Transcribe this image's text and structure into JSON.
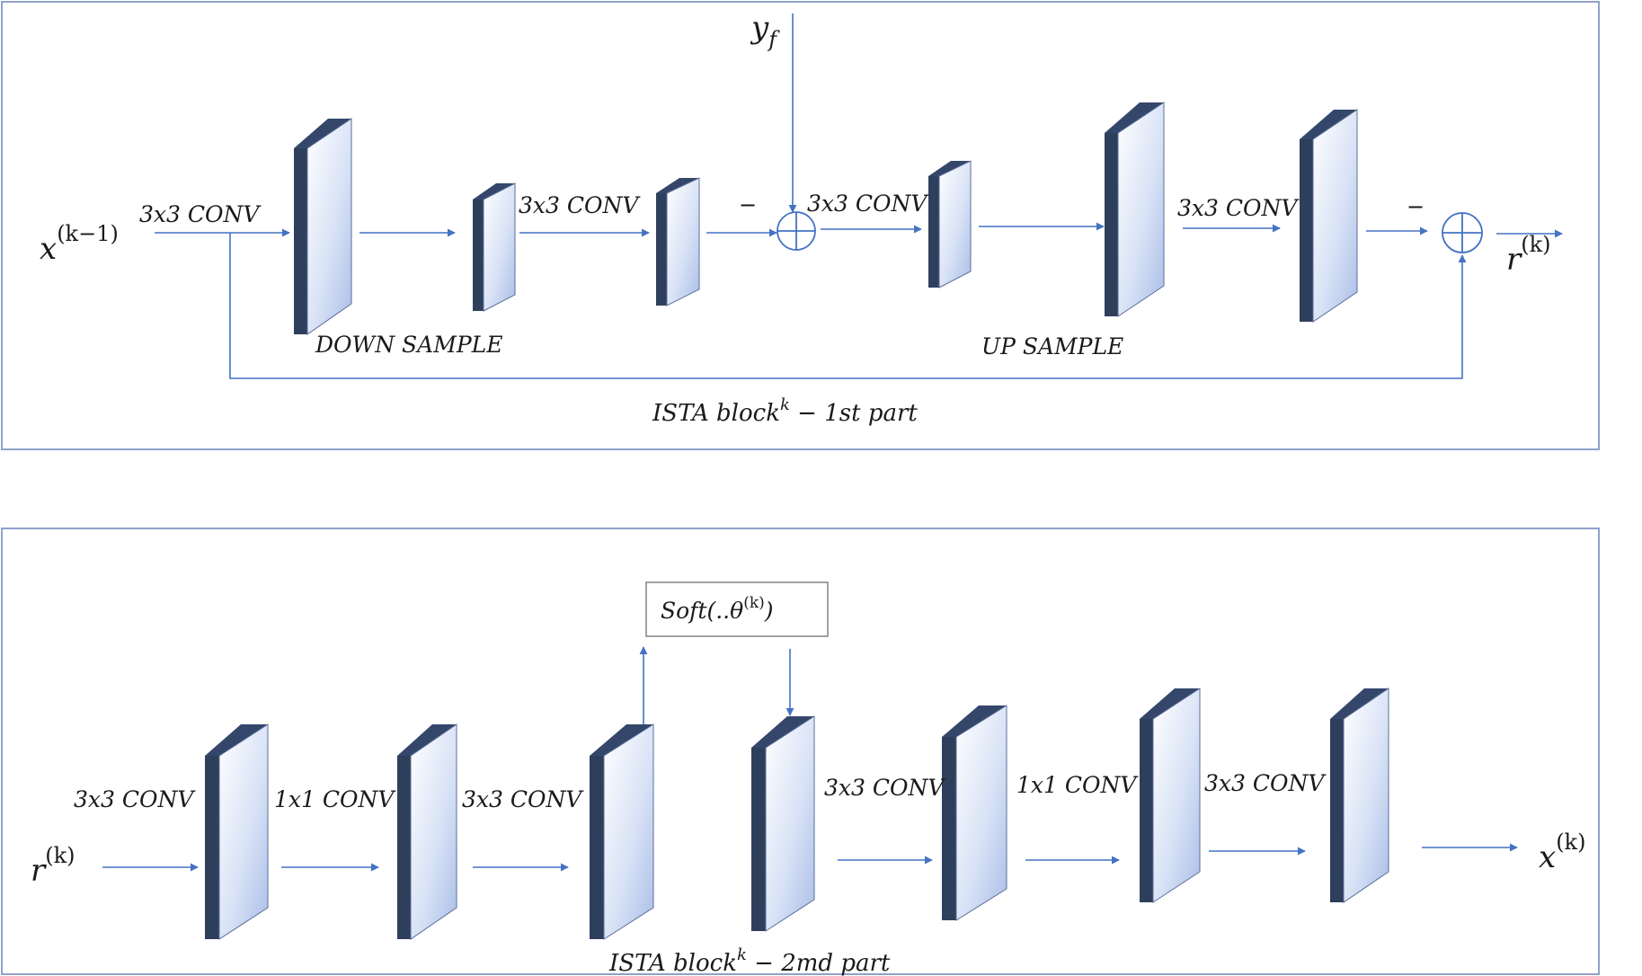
{
  "part1": {
    "input_label": "x",
    "input_sup": "(k−1)",
    "y_base": "y",
    "y_sub": "f",
    "conv_labels": [
      "3x3 CONV",
      "3x3 CONV",
      "3x3 CONV",
      "3x3 CONV"
    ],
    "minus_1": "−",
    "minus_2": "−",
    "down_sample": "DOWN SAMPLE",
    "up_sample": "UP SAMPLE",
    "output_base": "r",
    "output_sup": "(k)",
    "caption_pre": "ISTA block",
    "caption_sup": "k",
    "caption_post": " − 1st part"
  },
  "part2": {
    "input_base": "r",
    "input_sup": "(k)",
    "conv_labels": [
      "3x3 CONV",
      "1x1 CONV",
      "3x3 CONV",
      "3x3 CONV",
      "1x1 CONV",
      "3x3 CONV"
    ],
    "soft_pre": "Soft(..θ",
    "soft_sup": "(k)",
    "soft_post": ")",
    "output_base": "x",
    "output_sup": "(k)",
    "caption_pre": "ISTA block",
    "caption_sup": "k",
    "caption_post": " − 2md part"
  },
  "colors": {
    "arrow": "#4472c4",
    "frame": "#8ea1c9",
    "block_side": "#2e3f5c",
    "block_face_light": "#ffffff",
    "block_face_dark": "#a9bde6"
  }
}
